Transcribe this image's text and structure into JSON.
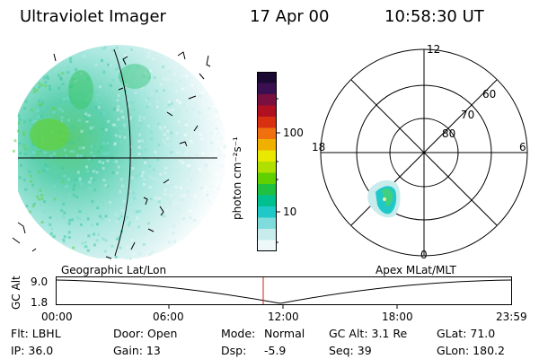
{
  "header": {
    "instrument": "Ultraviolet Imager",
    "date": "17 Apr 00",
    "time": "10:58:30 UT"
  },
  "colorbar": {
    "unit_label": "photon cm⁻²s⁻¹",
    "ticks": [
      "100",
      "10"
    ],
    "colors": [
      "#1a0a33",
      "#3a1050",
      "#7a1040",
      "#b01020",
      "#d83010",
      "#f07010",
      "#f0b000",
      "#e8e800",
      "#b0e000",
      "#60d000",
      "#20c040",
      "#00c090",
      "#20c8c8",
      "#80dcdc",
      "#c8ecec",
      "#eef8f8"
    ]
  },
  "polar": {
    "mlt_labels": {
      "top": "12",
      "bottom": "0",
      "left": "18",
      "right": "6"
    },
    "lat_labels": [
      "60",
      "70",
      "80"
    ]
  },
  "timeline": {
    "left_title": "Geographic Lat/Lon",
    "right_title": "Apex MLat/MLT",
    "axis_label": "GC Alt",
    "y_ticks": [
      "9.0",
      "1.8"
    ],
    "x_ticks": [
      "00:00",
      "06:00",
      "12:00",
      "18:00",
      "23:59"
    ],
    "marker_time": "10:58"
  },
  "info": {
    "flt": "Flt: LBHL",
    "door": "Door: Open",
    "mode_label": "Mode:",
    "mode_value": "Normal",
    "gc_alt": "GC Alt: 3.1 Re",
    "glat": "GLat:  71.0",
    "ip": "IP: 36.0",
    "gain": "Gain: 13",
    "dsp_label": "Dsp:",
    "dsp_value": "-5.9",
    "seq": "Seq: 39",
    "glon": "GLon: 180.2"
  }
}
